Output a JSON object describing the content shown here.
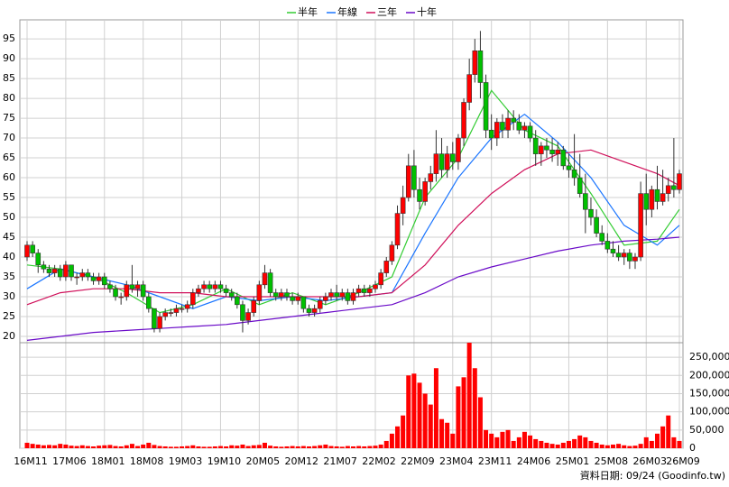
{
  "chart_data": {
    "type": "candlestick",
    "categories": [
      "16M11",
      null,
      null,
      null,
      null,
      null,
      null,
      "17M06",
      null,
      null,
      null,
      null,
      null,
      null,
      "18M01",
      null,
      null,
      null,
      null,
      null,
      null,
      "18M08",
      null,
      null,
      null,
      null,
      null,
      null,
      "19M03",
      null,
      null,
      null,
      null,
      null,
      null,
      "19M10",
      null,
      null,
      null,
      null,
      null,
      null,
      "20M05",
      null,
      null,
      null,
      null,
      null,
      null,
      "20M12",
      null,
      null,
      null,
      null,
      null,
      null,
      "21M07",
      null,
      null,
      null,
      null,
      null,
      null,
      "22M02",
      null,
      null,
      null,
      null,
      null,
      null,
      "22M09",
      null,
      null,
      null,
      null,
      null,
      null,
      "23M04",
      null,
      null,
      null,
      null,
      null,
      null,
      "23M11",
      null,
      null,
      null,
      null,
      null,
      null,
      "24M06",
      null,
      null,
      null,
      null,
      null,
      null,
      "25M01",
      null,
      null,
      null,
      null,
      null,
      null,
      "25M08",
      null,
      null,
      null,
      null,
      null,
      null,
      "26M03",
      null,
      null,
      null,
      null,
      null,
      "26M09"
    ],
    "candles": [
      [
        40,
        44,
        39,
        43
      ],
      [
        43,
        44,
        40,
        41
      ],
      [
        41,
        42,
        36,
        38
      ],
      [
        38,
        39,
        36,
        37
      ],
      [
        37,
        38,
        35,
        36
      ],
      [
        36,
        38,
        35,
        37
      ],
      [
        37,
        38,
        34,
        35
      ],
      [
        35,
        39,
        34,
        38
      ],
      [
        38,
        38,
        34,
        35
      ],
      [
        35,
        36,
        33,
        35
      ],
      [
        35,
        37,
        34,
        36
      ],
      [
        36,
        37,
        34,
        35
      ],
      [
        35,
        36,
        33,
        34
      ],
      [
        34,
        36,
        33,
        35
      ],
      [
        35,
        36,
        32,
        33
      ],
      [
        33,
        34,
        31,
        32
      ],
      [
        32,
        33,
        29,
        30
      ],
      [
        30,
        31,
        28,
        30
      ],
      [
        30,
        34,
        29,
        33
      ],
      [
        33,
        38,
        31,
        32
      ],
      [
        32,
        34,
        30,
        33
      ],
      [
        33,
        34,
        29,
        30
      ],
      [
        30,
        31,
        26,
        27
      ],
      [
        27,
        27,
        21,
        22
      ],
      [
        22,
        26,
        21,
        25
      ],
      [
        25,
        27,
        24,
        26
      ],
      [
        26,
        27,
        25,
        26
      ],
      [
        26,
        28,
        25,
        27
      ],
      [
        27,
        28,
        26,
        27
      ],
      [
        27,
        29,
        26,
        28
      ],
      [
        28,
        32,
        27,
        31
      ],
      [
        31,
        33,
        30,
        32
      ],
      [
        32,
        34,
        31,
        33
      ],
      [
        33,
        34,
        31,
        32
      ],
      [
        32,
        34,
        31,
        33
      ],
      [
        33,
        34,
        31,
        32
      ],
      [
        32,
        33,
        30,
        31
      ],
      [
        31,
        32,
        29,
        30
      ],
      [
        30,
        31,
        27,
        28
      ],
      [
        28,
        29,
        21,
        24
      ],
      [
        24,
        27,
        23,
        26
      ],
      [
        26,
        30,
        25,
        29
      ],
      [
        29,
        34,
        28,
        33
      ],
      [
        33,
        38,
        32,
        36
      ],
      [
        36,
        37,
        30,
        31
      ],
      [
        31,
        32,
        29,
        30
      ],
      [
        30,
        32,
        29,
        31
      ],
      [
        31,
        32,
        29,
        30
      ],
      [
        30,
        31,
        28,
        29
      ],
      [
        29,
        31,
        28,
        30
      ],
      [
        30,
        30,
        26,
        27
      ],
      [
        27,
        28,
        25,
        26
      ],
      [
        26,
        28,
        25,
        27
      ],
      [
        27,
        30,
        26,
        29
      ],
      [
        29,
        31,
        28,
        30
      ],
      [
        30,
        32,
        29,
        31
      ],
      [
        31,
        33,
        29,
        30
      ],
      [
        30,
        32,
        29,
        31
      ],
      [
        31,
        32,
        28,
        29
      ],
      [
        29,
        32,
        28,
        31
      ],
      [
        31,
        33,
        30,
        32
      ],
      [
        32,
        33,
        30,
        31
      ],
      [
        31,
        33,
        30,
        32
      ],
      [
        32,
        34,
        31,
        33
      ],
      [
        33,
        37,
        32,
        36
      ],
      [
        36,
        40,
        35,
        39
      ],
      [
        39,
        44,
        38,
        43
      ],
      [
        43,
        53,
        42,
        51
      ],
      [
        51,
        58,
        48,
        55
      ],
      [
        55,
        66,
        54,
        63
      ],
      [
        63,
        67,
        55,
        57
      ],
      [
        57,
        60,
        52,
        54
      ],
      [
        54,
        60,
        53,
        59
      ],
      [
        59,
        63,
        57,
        61
      ],
      [
        61,
        72,
        59,
        66
      ],
      [
        66,
        70,
        60,
        62
      ],
      [
        62,
        68,
        60,
        66
      ],
      [
        66,
        69,
        62,
        64
      ],
      [
        64,
        71,
        62,
        70
      ],
      [
        70,
        80,
        68,
        79
      ],
      [
        79,
        90,
        77,
        86
      ],
      [
        86,
        95,
        84,
        92
      ],
      [
        92,
        97,
        80,
        84
      ],
      [
        84,
        86,
        70,
        72
      ],
      [
        72,
        76,
        67,
        70
      ],
      [
        70,
        75,
        68,
        74
      ],
      [
        74,
        76,
        70,
        72
      ],
      [
        72,
        77,
        70,
        75
      ],
      [
        75,
        77,
        72,
        74
      ],
      [
        74,
        76,
        71,
        72
      ],
      [
        72,
        74,
        70,
        73
      ],
      [
        73,
        74,
        69,
        70
      ],
      [
        70,
        72,
        63,
        66
      ],
      [
        66,
        69,
        63,
        68
      ],
      [
        68,
        70,
        65,
        67
      ],
      [
        67,
        70,
        64,
        66
      ],
      [
        66,
        69,
        63,
        67
      ],
      [
        67,
        68,
        62,
        63
      ],
      [
        63,
        66,
        60,
        62
      ],
      [
        62,
        71,
        58,
        60
      ],
      [
        60,
        66,
        55,
        56
      ],
      [
        56,
        61,
        46,
        52
      ],
      [
        52,
        55,
        48,
        50
      ],
      [
        50,
        52,
        45,
        46
      ],
      [
        46,
        48,
        43,
        44
      ],
      [
        44,
        46,
        41,
        42
      ],
      [
        42,
        44,
        40,
        41
      ],
      [
        41,
        43,
        39,
        40
      ],
      [
        40,
        42,
        38,
        41
      ],
      [
        41,
        42,
        37,
        39
      ],
      [
        39,
        41,
        37,
        40
      ],
      [
        40,
        59,
        39,
        56
      ],
      [
        56,
        61,
        48,
        52
      ],
      [
        52,
        58,
        50,
        57
      ],
      [
        57,
        63,
        52,
        54
      ],
      [
        54,
        62,
        53,
        56
      ],
      [
        56,
        60,
        54,
        58
      ],
      [
        58,
        70,
        55,
        57
      ],
      [
        57,
        62,
        56,
        61
      ]
    ],
    "up_color": "#ff0000",
    "down_color": "#00c000",
    "series": [
      {
        "name": "半年",
        "color": "#33cc33",
        "x": [
          0,
          6,
          12,
          18,
          24,
          30,
          36,
          42,
          48,
          54,
          60,
          66,
          72,
          78,
          84,
          90,
          96,
          102,
          108,
          114,
          118
        ],
        "values": [
          38,
          37,
          35,
          31,
          26,
          28,
          32,
          28,
          31,
          28,
          31,
          35,
          55,
          65,
          82,
          72,
          68,
          56,
          43,
          44,
          52
        ]
      },
      {
        "name": "年線",
        "color": "#1a75ff",
        "x": [
          0,
          6,
          12,
          18,
          24,
          30,
          36,
          42,
          48,
          54,
          60,
          66,
          72,
          78,
          84,
          90,
          96,
          102,
          108,
          114,
          118
        ],
        "values": [
          32,
          37,
          35,
          33,
          30,
          27,
          30,
          29,
          30,
          29,
          30,
          31,
          46,
          60,
          70,
          76,
          69,
          60,
          48,
          43,
          48
        ]
      },
      {
        "name": "三年",
        "color": "#d0105a",
        "x": [
          0,
          6,
          12,
          18,
          24,
          30,
          36,
          42,
          48,
          54,
          60,
          66,
          72,
          78,
          84,
          90,
          96,
          102,
          108,
          114,
          118
        ],
        "values": [
          28,
          31,
          32,
          32,
          31,
          31,
          30,
          30,
          30,
          30,
          30,
          31,
          38,
          48,
          56,
          62,
          66,
          67,
          64,
          61,
          58
        ]
      },
      {
        "name": "十年",
        "color": "#6a0ac8",
        "x": [
          0,
          6,
          12,
          18,
          24,
          30,
          36,
          42,
          48,
          54,
          60,
          66,
          72,
          78,
          84,
          90,
          96,
          102,
          108,
          114,
          118
        ],
        "values": [
          19,
          20,
          21,
          21.5,
          22,
          22.5,
          23,
          24,
          25,
          26,
          27,
          28,
          31,
          35,
          37.5,
          39.5,
          41.5,
          43,
          44,
          44.5,
          45
        ]
      }
    ],
    "ylim": [
      18.4,
      99.8
    ],
    "yticks": [
      20,
      25,
      30,
      35,
      40,
      45,
      50,
      55,
      60,
      65,
      70,
      75,
      80,
      85,
      90,
      95
    ],
    "volume": {
      "color": "#ff0000",
      "values": [
        15000,
        12000,
        10000,
        8000,
        9000,
        8000,
        12000,
        10000,
        7000,
        6000,
        8000,
        6000,
        5000,
        7000,
        8000,
        9000,
        6000,
        5000,
        8000,
        12000,
        6000,
        10000,
        15000,
        9000,
        6000,
        5000,
        4000,
        4000,
        5000,
        6000,
        8000,
        5000,
        4000,
        4000,
        5000,
        6000,
        5000,
        8000,
        7000,
        10000,
        6000,
        8000,
        9000,
        15000,
        7000,
        5000,
        4000,
        5000,
        6000,
        5000,
        6000,
        5000,
        6000,
        8000,
        10000,
        6000,
        5000,
        4000,
        6000,
        5000,
        6000,
        5000,
        6000,
        7000,
        10000,
        20000,
        40000,
        60000,
        90000,
        200000,
        205000,
        180000,
        150000,
        120000,
        220000,
        80000,
        70000,
        40000,
        170000,
        195000,
        290000,
        220000,
        140000,
        50000,
        40000,
        30000,
        45000,
        50000,
        20000,
        30000,
        45000,
        35000,
        25000,
        20000,
        15000,
        12000,
        10000,
        15000,
        20000,
        25000,
        35000,
        30000,
        20000,
        15000,
        10000,
        8000,
        10000,
        12000,
        8000,
        6000,
        7000,
        12000,
        30000,
        20000,
        40000,
        60000,
        90000,
        30000,
        20000
      ],
      "y2lim": [
        0,
        290000
      ],
      "y2ticks": [
        0,
        {
          "value": 50000,
          "label": "50,000"
        },
        {
          "value": 100000,
          "label": "100,000"
        },
        {
          "value": 150000,
          "label": "150,000"
        },
        {
          "value": 200000,
          "label": "200,000"
        },
        {
          "value": 250000,
          "label": "250,000"
        }
      ]
    },
    "grid": true,
    "footer": "資料日期: 09/24 (Goodinfo.tw)"
  }
}
